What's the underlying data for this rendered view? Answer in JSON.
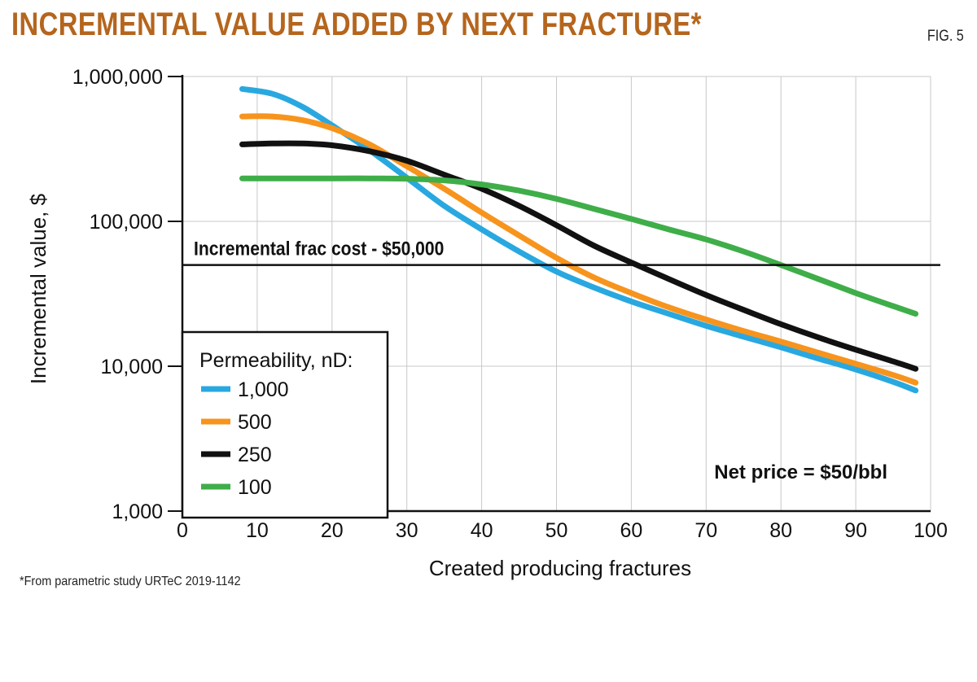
{
  "header": {
    "title": "INCREMENTAL VALUE ADDED BY NEXT FRACTURE*",
    "fig_label": "FIG. 5"
  },
  "footnote": "*From parametric study URTeC 2019-1142",
  "chart_data": {
    "type": "line",
    "xlabel": "Created producing fractures",
    "ylabel": "Incremental value, $",
    "xlim": [
      0,
      100
    ],
    "ylim": [
      1000,
      1000000
    ],
    "y_scale": "log",
    "grid": true,
    "x_ticks": [
      0,
      10,
      20,
      30,
      40,
      50,
      60,
      70,
      80,
      90,
      100
    ],
    "x_tick_labels": [
      "0",
      "10",
      "20",
      "30",
      "40",
      "50",
      "60",
      "70",
      "80",
      "90",
      "100"
    ],
    "y_ticks": [
      1000,
      10000,
      100000,
      1000000
    ],
    "y_tick_labels": [
      "1,000",
      "10,000",
      "100,000",
      "1,000,000"
    ],
    "legend": {
      "title": "Permeability, nD:",
      "placement": "bottom-left"
    },
    "series": [
      {
        "name": "1,000",
        "color": "#29a8e0",
        "x": [
          8,
          12,
          16,
          20,
          25,
          30,
          35,
          40,
          45,
          50,
          55,
          60,
          65,
          70,
          75,
          80,
          85,
          90,
          95,
          98
        ],
        "y": [
          820000,
          760000,
          620000,
          460000,
          310000,
          200000,
          128000,
          88000,
          62000,
          45000,
          35000,
          28000,
          23000,
          19000,
          16000,
          13500,
          11300,
          9500,
          7800,
          6800
        ]
      },
      {
        "name": "500",
        "color": "#f7941d",
        "x": [
          8,
          12,
          16,
          20,
          25,
          30,
          35,
          40,
          45,
          50,
          55,
          60,
          65,
          70,
          75,
          80,
          85,
          90,
          95,
          98
        ],
        "y": [
          530000,
          530000,
          500000,
          440000,
          340000,
          240000,
          168000,
          115000,
          80000,
          56000,
          41000,
          32000,
          25500,
          21000,
          17500,
          14800,
          12400,
          10400,
          8700,
          7700
        ]
      },
      {
        "name": "250",
        "color": "#111111",
        "x": [
          8,
          12,
          16,
          20,
          25,
          30,
          35,
          40,
          45,
          50,
          55,
          60,
          65,
          70,
          75,
          80,
          85,
          90,
          95,
          98
        ],
        "y": [
          340000,
          345000,
          345000,
          335000,
          305000,
          262000,
          210000,
          168000,
          128000,
          94000,
          68000,
          52000,
          40000,
          31000,
          24500,
          19500,
          15800,
          13000,
          10800,
          9600
        ]
      },
      {
        "name": "100",
        "color": "#3fae49",
        "x": [
          8,
          12,
          16,
          20,
          25,
          30,
          35,
          40,
          45,
          50,
          55,
          60,
          65,
          70,
          75,
          80,
          85,
          90,
          95,
          98
        ],
        "y": [
          198000,
          198000,
          198000,
          198000,
          198000,
          197000,
          192000,
          180000,
          163000,
          143000,
          122000,
          104000,
          88000,
          75000,
          62000,
          50000,
          40000,
          32000,
          26000,
          23000
        ]
      }
    ],
    "reference_line": {
      "y": 50000,
      "label": "Incremental frac cost - $50,000"
    },
    "annotation": "Net price = $50/bbl"
  }
}
